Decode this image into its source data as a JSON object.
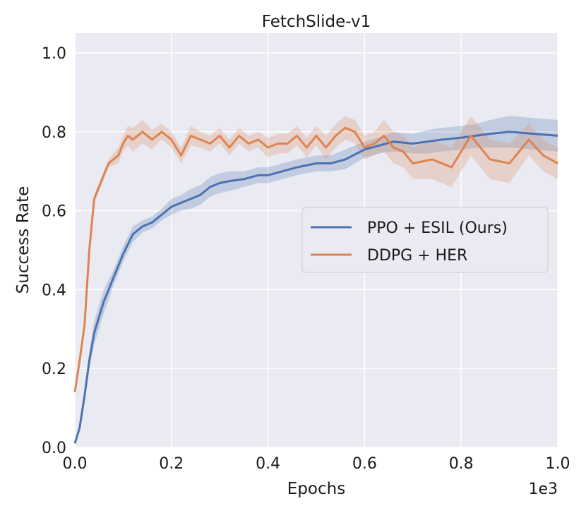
{
  "chart_data": {
    "type": "line",
    "title": "FetchSlide-v1",
    "xlabel": "Epochs",
    "ylabel": "Success Rate",
    "x_offset_text": "1e3",
    "xlim": [
      0.0,
      1.0
    ],
    "ylim": [
      0.0,
      1.05
    ],
    "xticks": [
      "0.0",
      "0.2",
      "0.4",
      "0.6",
      "0.8",
      "1.0"
    ],
    "yticks": [
      "0.0",
      "0.2",
      "0.4",
      "0.6",
      "0.8",
      "1.0"
    ],
    "grid": true,
    "background": "#eaeaf2",
    "legend": {
      "placement": "center-right"
    },
    "series": [
      {
        "name": "PPO + ESIL (Ours)",
        "color": "#4c72b0",
        "band_halfwidth": [
          0.0,
          0.005,
          0.01,
          0.02,
          0.03,
          0.03,
          0.03,
          0.025,
          0.02,
          0.02,
          0.02,
          0.02,
          0.015,
          0.015,
          0.015,
          0.02,
          0.02,
          0.025,
          0.025,
          0.025,
          0.025,
          0.025,
          0.02,
          0.02,
          0.02,
          0.02,
          0.02,
          0.02,
          0.02,
          0.025,
          0.02,
          0.02,
          0.025,
          0.025,
          0.03,
          0.03,
          0.03,
          0.03,
          0.035,
          0.04,
          0.04
        ],
        "x": [
          0.0,
          0.01,
          0.02,
          0.03,
          0.04,
          0.05,
          0.06,
          0.07,
          0.08,
          0.09,
          0.1,
          0.12,
          0.14,
          0.16,
          0.18,
          0.2,
          0.22,
          0.24,
          0.26,
          0.28,
          0.3,
          0.32,
          0.35,
          0.38,
          0.4,
          0.43,
          0.46,
          0.5,
          0.53,
          0.56,
          0.6,
          0.63,
          0.66,
          0.7,
          0.73,
          0.76,
          0.8,
          0.83,
          0.86,
          0.9,
          1.0
        ],
        "values": [
          0.01,
          0.05,
          0.13,
          0.22,
          0.29,
          0.33,
          0.37,
          0.4,
          0.43,
          0.46,
          0.49,
          0.54,
          0.56,
          0.57,
          0.59,
          0.61,
          0.62,
          0.63,
          0.64,
          0.66,
          0.67,
          0.675,
          0.68,
          0.69,
          0.69,
          0.7,
          0.71,
          0.72,
          0.72,
          0.73,
          0.755,
          0.765,
          0.775,
          0.77,
          0.775,
          0.78,
          0.785,
          0.79,
          0.795,
          0.8,
          0.79
        ]
      },
      {
        "name": "DDPG + HER",
        "color": "#dd8452",
        "band_halfwidth": [
          0.0,
          0.005,
          0.01,
          0.01,
          0.01,
          0.01,
          0.01,
          0.01,
          0.015,
          0.02,
          0.02,
          0.025,
          0.03,
          0.03,
          0.025,
          0.02,
          0.02,
          0.02,
          0.025,
          0.02,
          0.02,
          0.02,
          0.02,
          0.02,
          0.02,
          0.02,
          0.025,
          0.025,
          0.025,
          0.025,
          0.025,
          0.025,
          0.03,
          0.03,
          0.03,
          0.03,
          0.03,
          0.03,
          0.04,
          0.04,
          0.04,
          0.04,
          0.05,
          0.05,
          0.05,
          0.05,
          0.05,
          0.04,
          0.04,
          0.04
        ],
        "x": [
          0.0,
          0.01,
          0.02,
          0.03,
          0.04,
          0.05,
          0.06,
          0.07,
          0.08,
          0.09,
          0.1,
          0.11,
          0.12,
          0.14,
          0.16,
          0.18,
          0.2,
          0.22,
          0.24,
          0.26,
          0.28,
          0.3,
          0.32,
          0.34,
          0.36,
          0.38,
          0.4,
          0.42,
          0.44,
          0.46,
          0.48,
          0.5,
          0.52,
          0.54,
          0.56,
          0.58,
          0.6,
          0.62,
          0.64,
          0.66,
          0.68,
          0.7,
          0.74,
          0.78,
          0.82,
          0.86,
          0.9,
          0.94,
          0.97,
          1.0
        ],
        "values": [
          0.14,
          0.22,
          0.31,
          0.5,
          0.63,
          0.66,
          0.69,
          0.72,
          0.73,
          0.74,
          0.77,
          0.79,
          0.78,
          0.8,
          0.78,
          0.8,
          0.78,
          0.74,
          0.79,
          0.78,
          0.77,
          0.79,
          0.76,
          0.79,
          0.77,
          0.78,
          0.76,
          0.77,
          0.77,
          0.79,
          0.76,
          0.79,
          0.76,
          0.79,
          0.81,
          0.8,
          0.76,
          0.77,
          0.79,
          0.76,
          0.75,
          0.72,
          0.73,
          0.71,
          0.79,
          0.73,
          0.72,
          0.78,
          0.74,
          0.72
        ]
      }
    ]
  }
}
